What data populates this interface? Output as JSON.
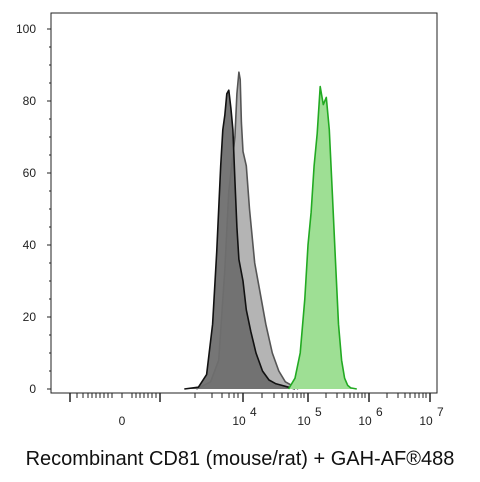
{
  "caption": "Recombinant CD81 (mouse/rat) + GAH-AF®488",
  "chart_data": {
    "type": "area",
    "title": "",
    "xlabel": "",
    "ylabel": "",
    "ylim": [
      0,
      100
    ],
    "yticks": [
      0,
      20,
      40,
      60,
      80,
      100
    ],
    "xticks": [
      {
        "value": "0",
        "base": "0",
        "exp": ""
      },
      {
        "value": "10^4",
        "base": "10",
        "exp": "4"
      },
      {
        "value": "10^5",
        "base": "10",
        "exp": "5"
      },
      {
        "value": "10^6",
        "base": "10",
        "exp": "6"
      },
      {
        "value": "10^7",
        "base": "10",
        "exp": "7"
      }
    ],
    "x_scale": "biexponential",
    "grid": false,
    "series": [
      {
        "fill": "#b4b4b4",
        "stroke": "#555555",
        "x": [
          2.85,
          3.2,
          3.4,
          3.55,
          3.65,
          3.72,
          3.8,
          3.85,
          3.9,
          3.93,
          3.96,
          4.0,
          4.05,
          4.1,
          4.18,
          4.25,
          4.35,
          4.45,
          4.55,
          4.65,
          4.75,
          4.8,
          4.85
        ],
        "y": [
          0,
          2,
          8,
          33,
          55,
          62,
          70,
          82,
          88,
          86,
          74,
          66,
          62,
          50,
          35,
          28,
          18,
          10,
          5,
          2,
          1,
          0.5,
          0
        ]
      },
      {
        "fill": "#6f6f6f",
        "stroke": "#111111",
        "x": [
          2.55,
          2.9,
          3.1,
          3.25,
          3.35,
          3.45,
          3.5,
          3.55,
          3.6,
          3.65,
          3.7,
          3.75,
          3.8,
          3.85,
          3.9,
          4.0,
          4.05,
          4.12,
          4.2,
          4.3,
          4.4,
          4.5,
          4.6,
          4.7,
          4.8
        ],
        "y": [
          0,
          0.5,
          4,
          18,
          38,
          62,
          72,
          76,
          82,
          83,
          78,
          72,
          58,
          45,
          36,
          30,
          22,
          16,
          10,
          5,
          2.5,
          1.5,
          1,
          0.5,
          0
        ]
      },
      {
        "fill": "#9edf94",
        "stroke": "#22aa22",
        "x": [
          4.7,
          4.8,
          4.88,
          4.95,
          5.0,
          5.05,
          5.1,
          5.15,
          5.2,
          5.25,
          5.3,
          5.35,
          5.4,
          5.45,
          5.5,
          5.55,
          5.6,
          5.65,
          5.7,
          5.8
        ],
        "y": [
          0,
          3,
          10,
          25,
          40,
          49,
          62,
          71,
          84,
          79,
          81,
          72,
          54,
          36,
          18,
          8,
          3,
          1,
          0.3,
          0
        ]
      }
    ]
  }
}
